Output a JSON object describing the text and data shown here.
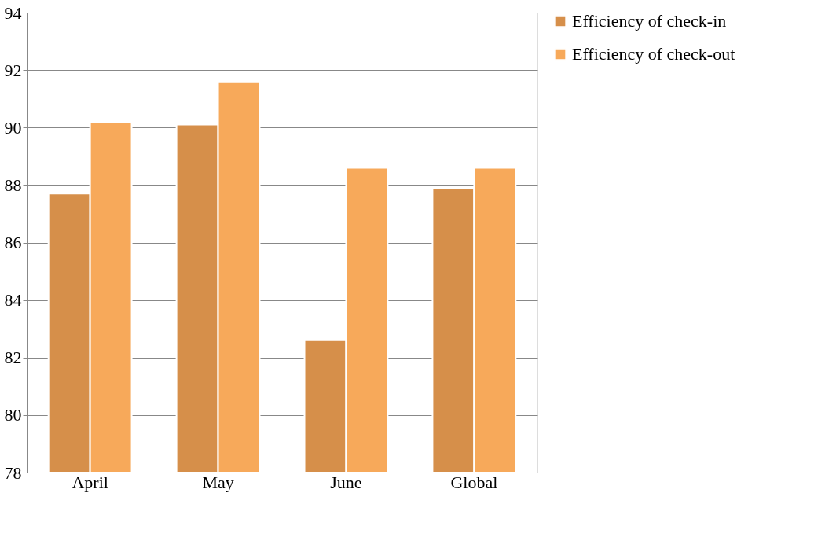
{
  "chart_data": {
    "type": "bar",
    "categories": [
      "April",
      "May",
      "June",
      "Global"
    ],
    "series": [
      {
        "name": "Efficiency of check-in",
        "color": "#d68f4a",
        "values": [
          87.7,
          90.1,
          82.6,
          87.9
        ]
      },
      {
        "name": "Efficiency of check-out",
        "color": "#f7a95a",
        "values": [
          90.2,
          91.6,
          88.6,
          88.6
        ]
      }
    ],
    "ylim": [
      78,
      94
    ],
    "yticks": [
      78,
      80,
      82,
      84,
      86,
      88,
      90,
      92,
      94
    ],
    "grid": "y",
    "legend": "right"
  }
}
